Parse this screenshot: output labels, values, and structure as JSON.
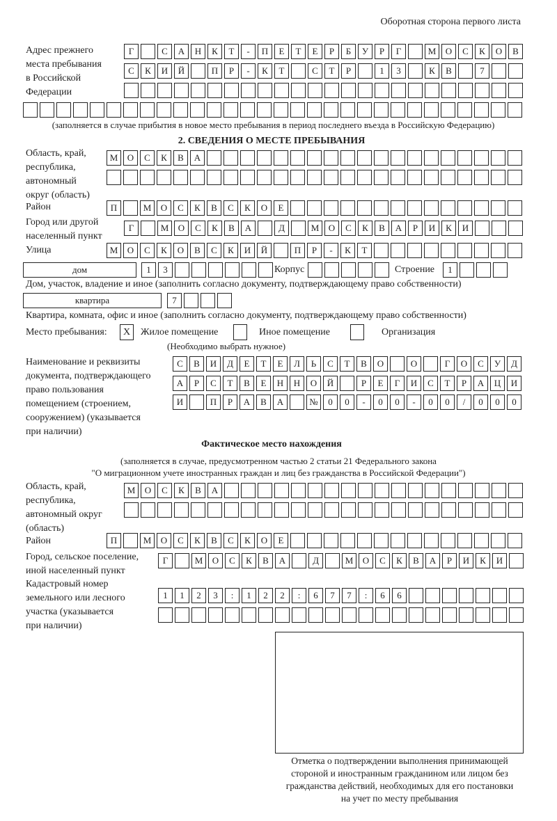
{
  "header": {
    "sheet_side": "Оборотная сторона первого листа"
  },
  "previous_address": {
    "label": "Адрес прежнего места пребывания в Российской Федерации",
    "label_lines": [
      "Адрес прежнего",
      "места пребывания",
      "в Российской",
      "Федерации"
    ],
    "rows": [
      [
        "Г",
        "",
        "С",
        "А",
        "Н",
        "К",
        "Т",
        "-",
        "П",
        "Е",
        "Т",
        "Е",
        "Р",
        "Б",
        "У",
        "Р",
        "Г",
        "",
        "М",
        "О",
        "С",
        "К",
        "О",
        "В"
      ],
      [
        "С",
        "К",
        "И",
        "Й",
        "",
        "П",
        "Р",
        "-",
        "К",
        "Т",
        "",
        "С",
        "Т",
        "Р",
        "",
        "1",
        "3",
        "",
        "К",
        "В",
        "",
        "7"
      ],
      [],
      []
    ],
    "note": "(заполняется в случае прибытия в новое место пребывания в период последнего въезда в Российскую Федерацию)"
  },
  "section2": {
    "title": "2. СВЕДЕНИЯ О МЕСТЕ ПРЕБЫВАНИЯ",
    "region": {
      "label_lines": [
        "Область, край,",
        "республика,",
        "автономный",
        "округ (область)"
      ],
      "rows": [
        [
          "М",
          "О",
          "С",
          "К",
          "В",
          "А"
        ],
        []
      ]
    },
    "district": {
      "label": "Район",
      "chars": [
        "П",
        "",
        "М",
        "О",
        "С",
        "К",
        "В",
        "С",
        "К",
        "О",
        "Е"
      ]
    },
    "city": {
      "label_lines": [
        "Город или другой",
        "населенный пункт"
      ],
      "chars": [
        "Г",
        "",
        "М",
        "О",
        "С",
        "К",
        "В",
        "А",
        "",
        "Д",
        "",
        "М",
        "О",
        "С",
        "К",
        "В",
        "А",
        "Р",
        "И",
        "К",
        "И"
      ]
    },
    "street": {
      "label": "Улица",
      "chars": [
        "М",
        "О",
        "С",
        "К",
        "О",
        "В",
        "С",
        "К",
        "И",
        "Й",
        "",
        "П",
        "Р",
        "-",
        "К",
        "Т"
      ]
    },
    "house": {
      "type": "дом",
      "chars": [
        "1",
        "3"
      ],
      "korpus_label": "Корпус",
      "korpus_chars": [],
      "building_label": "Строение",
      "building_chars": [
        "1"
      ],
      "note": "Дом, участок, владение и иное (заполнить согласно документу, подтверждающему право собственности)"
    },
    "apartment": {
      "type": "квартира",
      "chars": [
        "7"
      ],
      "note": "Квартира, комната, офис и иное (заполнить согласно документу, подтверждающему право собственности)"
    },
    "place": {
      "label": "Место пребывания:",
      "options": [
        {
          "label": "Жилое помещение",
          "mark": "X",
          "checked": true
        },
        {
          "label": "Иное помещение",
          "mark": "",
          "checked": false
        },
        {
          "label": "Организация",
          "mark": "",
          "checked": false
        }
      ],
      "note": "(Необходимо выбрать нужное)"
    },
    "document": {
      "label_lines": [
        "Наименование и реквизиты",
        "документа, подтверждающего",
        "право пользования",
        "помещением (строением,",
        "сооружением) (указывается",
        "при наличии)"
      ],
      "rows": [
        [
          "С",
          "В",
          "И",
          "Д",
          "Е",
          "Т",
          "Е",
          "Л",
          "Ь",
          "С",
          "Т",
          "В",
          "О",
          "",
          "О",
          "",
          "Г",
          "О",
          "С",
          "У",
          "Д"
        ],
        [
          "А",
          "Р",
          "С",
          "Т",
          "В",
          "Е",
          "Н",
          "Н",
          "О",
          "Й",
          "",
          "Р",
          "Е",
          "Г",
          "И",
          "С",
          "Т",
          "Р",
          "А",
          "Ц",
          "И"
        ],
        [
          "И",
          "",
          "П",
          "Р",
          "А",
          "В",
          "А",
          "",
          "№",
          "0",
          "0",
          "-",
          "0",
          "0",
          "-",
          "0",
          "0",
          "/",
          "0",
          "0",
          "0"
        ]
      ]
    }
  },
  "actual": {
    "title": "Фактическое место нахождения",
    "note_lines": [
      "(заполняется в случае, предусмотренном частью 2 статьи 21 Федерального закона",
      "\"О миграционном учете иностранных граждан и лиц без гражданства в Российской Федерации\")"
    ],
    "region": {
      "label_lines": [
        "Область, край,",
        "республика,",
        "автономный округ",
        "(область)"
      ],
      "rows": [
        [
          "М",
          "О",
          "С",
          "К",
          "В",
          "А"
        ],
        []
      ]
    },
    "district": {
      "label": "Район",
      "chars": [
        "П",
        "",
        "М",
        "О",
        "С",
        "К",
        "В",
        "С",
        "К",
        "О",
        "Е"
      ]
    },
    "city": {
      "label_lines": [
        "Город, сельское поселение,",
        "иной населенный пункт"
      ],
      "chars": [
        "Г",
        "",
        "М",
        "О",
        "С",
        "К",
        "В",
        "А",
        "",
        "Д",
        "",
        "М",
        "О",
        "С",
        "К",
        "В",
        "А",
        "Р",
        "И",
        "К",
        "И"
      ]
    },
    "cadastre": {
      "label_lines": [
        "Кадастровый номер",
        "земельного или лесного",
        "участка (указывается",
        "при наличии)"
      ],
      "rows": [
        [
          "1",
          "1",
          "2",
          "3",
          ":",
          "1",
          "2",
          "2",
          ":",
          "6",
          "7",
          "7",
          ":",
          "6",
          "6"
        ],
        []
      ]
    }
  },
  "confirmation": {
    "caption_lines": [
      "Отметка о подтверждении выполнения принимающей",
      "стороной и иностранным гражданином или лицом без",
      "гражданства действий, необходимых для его постановки",
      "на учет по месту пребывания"
    ]
  }
}
